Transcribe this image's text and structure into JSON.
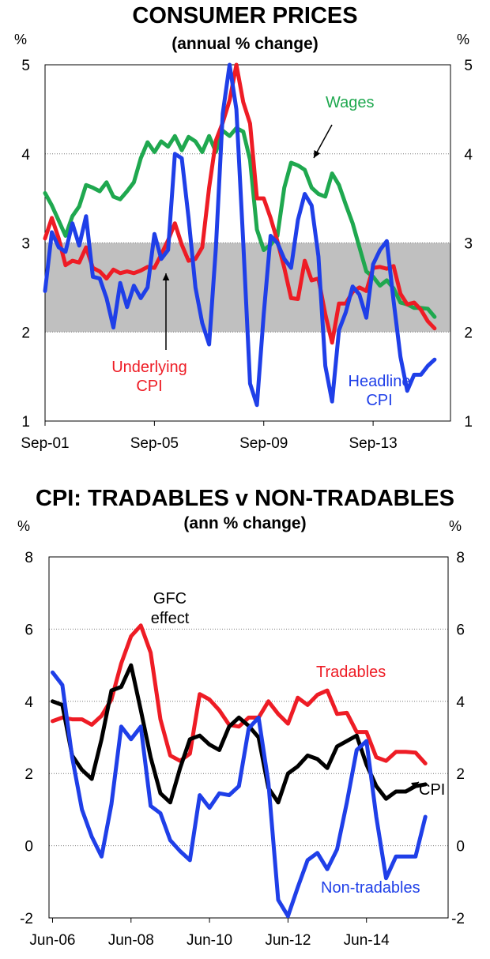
{
  "chart_data": [
    {
      "type": "line",
      "title": "CONSUMER PRICES",
      "subtitle": "(annual % change)",
      "unit_left": "%",
      "unit_right": "%",
      "ylim": [
        1,
        5
      ],
      "yticks": [
        "1",
        "2",
        "3",
        "4",
        "5"
      ],
      "xlim": [
        2001.67,
        2016.5
      ],
      "xticks": [
        {
          "label": "Sep-01",
          "x": 2001.67
        },
        {
          "label": "Sep-05",
          "x": 2005.67
        },
        {
          "label": "Sep-09",
          "x": 2009.67
        },
        {
          "label": "Sep-13",
          "x": 2013.67
        }
      ],
      "target_band": [
        2,
        3
      ],
      "grid": "horizontal dotted",
      "series": [
        {
          "name": "Wages",
          "color": "#1fa84f",
          "label_lines": [
            "Wages"
          ],
          "x": [
            2001.67,
            2001.92,
            2002.17,
            2002.42,
            2002.67,
            2002.92,
            2003.17,
            2003.42,
            2003.67,
            2003.92,
            2004.17,
            2004.42,
            2004.67,
            2004.92,
            2005.17,
            2005.42,
            2005.67,
            2005.92,
            2006.17,
            2006.42,
            2006.67,
            2006.92,
            2007.17,
            2007.42,
            2007.67,
            2007.92,
            2008.17,
            2008.42,
            2008.67,
            2008.92,
            2009.17,
            2009.42,
            2009.67,
            2009.92,
            2010.17,
            2010.42,
            2010.67,
            2010.92,
            2011.17,
            2011.42,
            2011.67,
            2011.92,
            2012.17,
            2012.42,
            2012.67,
            2012.92,
            2013.17,
            2013.42,
            2013.67,
            2013.92,
            2014.17,
            2014.42,
            2014.67,
            2014.92,
            2015.17,
            2015.42,
            2015.67,
            2015.92
          ],
          "values": [
            3.56,
            3.42,
            3.25,
            3.08,
            3.3,
            3.41,
            3.65,
            3.62,
            3.58,
            3.68,
            3.52,
            3.49,
            3.58,
            3.68,
            3.95,
            4.13,
            4.02,
            4.14,
            4.08,
            4.2,
            4.04,
            4.19,
            4.14,
            4.02,
            4.2,
            4.02,
            4.26,
            4.2,
            4.29,
            4.25,
            3.93,
            3.15,
            2.92,
            2.98,
            3.08,
            3.62,
            3.9,
            3.87,
            3.82,
            3.62,
            3.55,
            3.52,
            3.78,
            3.65,
            3.43,
            3.22,
            2.95,
            2.68,
            2.62,
            2.52,
            2.58,
            2.49,
            2.33,
            2.31,
            2.27,
            2.27,
            2.26,
            2.17
          ]
        },
        {
          "name": "Underlying CPI",
          "color": "#ee1c25",
          "label_lines": [
            "Underlying",
            "CPI"
          ],
          "x": [
            2001.67,
            2001.92,
            2002.17,
            2002.42,
            2002.67,
            2002.92,
            2003.17,
            2003.42,
            2003.67,
            2003.92,
            2004.17,
            2004.42,
            2004.67,
            2004.92,
            2005.17,
            2005.42,
            2005.67,
            2005.92,
            2006.17,
            2006.42,
            2006.67,
            2006.92,
            2007.17,
            2007.42,
            2007.67,
            2007.92,
            2008.17,
            2008.42,
            2008.67,
            2008.92,
            2009.17,
            2009.42,
            2009.67,
            2009.92,
            2010.17,
            2010.42,
            2010.67,
            2010.92,
            2011.17,
            2011.42,
            2011.67,
            2011.92,
            2012.17,
            2012.42,
            2012.67,
            2012.92,
            2013.17,
            2013.42,
            2013.67,
            2013.92,
            2014.17,
            2014.42,
            2014.67,
            2014.92,
            2015.17,
            2015.42,
            2015.67,
            2015.92
          ],
          "values": [
            3.05,
            3.28,
            3.05,
            2.75,
            2.8,
            2.78,
            2.95,
            2.72,
            2.68,
            2.6,
            2.7,
            2.66,
            2.68,
            2.66,
            2.69,
            2.73,
            2.72,
            2.87,
            3.03,
            3.22,
            2.98,
            2.8,
            2.82,
            2.95,
            3.62,
            4.15,
            4.35,
            4.6,
            5.0,
            4.58,
            4.34,
            3.5,
            3.5,
            3.28,
            3.02,
            2.72,
            2.38,
            2.37,
            2.8,
            2.58,
            2.6,
            2.2,
            1.88,
            2.32,
            2.32,
            2.45,
            2.5,
            2.46,
            2.72,
            2.73,
            2.71,
            2.74,
            2.43,
            2.31,
            2.33,
            2.25,
            2.12,
            2.04
          ]
        },
        {
          "name": "Headline CPI",
          "color": "#1f3fe8",
          "label_lines": [
            "Headline",
            "CPI"
          ],
          "x": [
            2001.67,
            2001.92,
            2002.17,
            2002.42,
            2002.67,
            2002.92,
            2003.17,
            2003.42,
            2003.67,
            2003.92,
            2004.17,
            2004.42,
            2004.67,
            2004.92,
            2005.17,
            2005.42,
            2005.67,
            2005.92,
            2006.17,
            2006.42,
            2006.67,
            2006.92,
            2007.17,
            2007.42,
            2007.67,
            2007.92,
            2008.17,
            2008.42,
            2008.67,
            2008.92,
            2009.17,
            2009.42,
            2009.67,
            2009.92,
            2010.17,
            2010.42,
            2010.67,
            2010.92,
            2011.17,
            2011.42,
            2011.67,
            2011.92,
            2012.17,
            2012.42,
            2012.67,
            2012.92,
            2013.17,
            2013.42,
            2013.67,
            2013.92,
            2014.17,
            2014.42,
            2014.67,
            2014.92,
            2015.17,
            2015.42,
            2015.67,
            2015.92
          ],
          "values": [
            2.46,
            3.12,
            2.95,
            2.9,
            3.22,
            2.97,
            3.3,
            2.62,
            2.6,
            2.38,
            2.05,
            2.55,
            2.28,
            2.52,
            2.38,
            2.5,
            3.1,
            2.82,
            2.92,
            4.0,
            3.95,
            3.28,
            2.5,
            2.1,
            1.86,
            2.95,
            4.45,
            5.0,
            4.5,
            3.0,
            1.42,
            1.18,
            2.2,
            3.08,
            3.0,
            2.82,
            2.72,
            3.26,
            3.55,
            3.42,
            2.85,
            1.62,
            1.22,
            2.02,
            2.22,
            2.51,
            2.42,
            2.16,
            2.76,
            2.92,
            3.02,
            2.35,
            1.72,
            1.34,
            1.52,
            1.52,
            1.62,
            1.69
          ]
        }
      ]
    },
    {
      "type": "line",
      "title": "CPI: TRADABLES v NON-TRADABLES",
      "subtitle": "(ann % change)",
      "unit_left": "%",
      "unit_right": "%",
      "ylim": [
        -2,
        8
      ],
      "yticks": [
        "-2",
        "0",
        "2",
        "4",
        "6",
        "8"
      ],
      "xlim": [
        2006.33,
        2016.5
      ],
      "xticks": [
        {
          "label": "Jun-06",
          "x": 2006.42
        },
        {
          "label": "Jun-08",
          "x": 2008.42
        },
        {
          "label": "Jun-10",
          "x": 2010.42
        },
        {
          "label": "Jun-12",
          "x": 2012.42
        },
        {
          "label": "Jun-14",
          "x": 2014.42
        }
      ],
      "grid": "horizontal dotted",
      "annotation": [
        "GFC",
        "effect"
      ],
      "series": [
        {
          "name": "Tradables",
          "color": "#ee1c25",
          "label_lines": [
            "Tradables"
          ],
          "x": [
            2006.42,
            2006.67,
            2006.92,
            2007.17,
            2007.42,
            2007.67,
            2007.92,
            2008.17,
            2008.42,
            2008.67,
            2008.92,
            2009.17,
            2009.42,
            2009.67,
            2009.92,
            2010.17,
            2010.42,
            2010.67,
            2010.92,
            2011.17,
            2011.42,
            2011.67,
            2011.92,
            2012.17,
            2012.42,
            2012.67,
            2012.92,
            2013.17,
            2013.42,
            2013.67,
            2013.92,
            2014.17,
            2014.42,
            2014.67,
            2014.92,
            2015.17,
            2015.42,
            2015.67,
            2015.92
          ],
          "values": [
            3.45,
            3.55,
            3.5,
            3.5,
            3.35,
            3.6,
            4.05,
            5.05,
            5.8,
            6.1,
            5.35,
            3.5,
            2.5,
            2.35,
            2.55,
            4.2,
            4.05,
            3.75,
            3.35,
            3.3,
            3.55,
            3.55,
            4.0,
            3.65,
            3.38,
            4.1,
            3.9,
            4.18,
            4.3,
            3.65,
            3.68,
            3.15,
            3.15,
            2.45,
            2.35,
            2.6,
            2.6,
            2.58,
            2.28
          ]
        },
        {
          "name": "CPI",
          "color": "#000000",
          "label_lines": [
            "CPI"
          ],
          "x": [
            2006.42,
            2006.67,
            2006.92,
            2007.17,
            2007.42,
            2007.67,
            2007.92,
            2008.17,
            2008.42,
            2008.67,
            2008.92,
            2009.17,
            2009.42,
            2009.67,
            2009.92,
            2010.17,
            2010.42,
            2010.67,
            2010.92,
            2011.17,
            2011.42,
            2011.67,
            2011.92,
            2012.17,
            2012.42,
            2012.67,
            2012.92,
            2013.17,
            2013.42,
            2013.67,
            2013.92,
            2014.17,
            2014.42,
            2014.67,
            2014.92,
            2015.17,
            2015.42,
            2015.67,
            2015.92
          ],
          "values": [
            4.0,
            3.9,
            2.5,
            2.1,
            1.85,
            2.95,
            4.3,
            4.4,
            5.0,
            3.75,
            2.45,
            1.45,
            1.2,
            2.15,
            2.95,
            3.05,
            2.8,
            2.65,
            3.3,
            3.55,
            3.32,
            3.0,
            1.6,
            1.2,
            2.0,
            2.2,
            2.5,
            2.4,
            2.15,
            2.75,
            2.9,
            3.05,
            2.25,
            1.65,
            1.3,
            1.5,
            1.5,
            1.65,
            1.7
          ]
        },
        {
          "name": "Non-tradables",
          "color": "#1f3fe8",
          "label_lines": [
            "Non-tradables"
          ],
          "x": [
            2006.42,
            2006.67,
            2006.92,
            2007.17,
            2007.42,
            2007.67,
            2007.92,
            2008.17,
            2008.42,
            2008.67,
            2008.92,
            2009.17,
            2009.42,
            2009.67,
            2009.92,
            2010.17,
            2010.42,
            2010.67,
            2010.92,
            2011.17,
            2011.42,
            2011.67,
            2011.92,
            2012.17,
            2012.42,
            2012.67,
            2012.92,
            2013.17,
            2013.42,
            2013.67,
            2013.92,
            2014.17,
            2014.42,
            2014.67,
            2014.92,
            2015.17,
            2015.42,
            2015.67,
            2015.92
          ],
          "values": [
            4.8,
            4.45,
            2.45,
            1.0,
            0.25,
            -0.3,
            1.15,
            3.3,
            2.95,
            3.3,
            1.1,
            0.9,
            0.15,
            -0.15,
            -0.4,
            1.4,
            1.05,
            1.45,
            1.4,
            1.65,
            3.25,
            3.55,
            1.75,
            -1.5,
            -1.95,
            -1.15,
            -0.4,
            -0.2,
            -0.65,
            -0.1,
            1.2,
            2.65,
            2.9,
            0.8,
            -0.9,
            -0.3,
            -0.3,
            -0.3,
            0.8
          ]
        }
      ]
    }
  ]
}
